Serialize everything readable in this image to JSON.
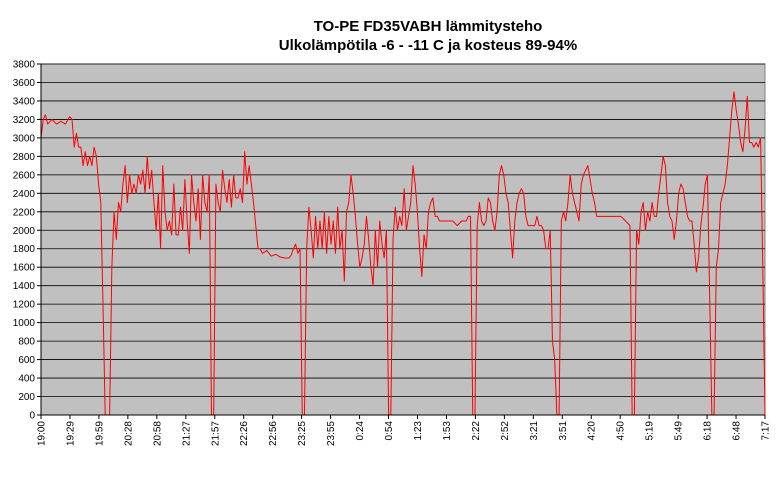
{
  "chart_data": {
    "type": "line",
    "title": "TO-PE FD35VABH lämmitysteho",
    "subtitle": "Ulkolämpötila  -6 - -11 C ja kosteus 89-94%",
    "xlabel": "",
    "ylabel": "",
    "ylim": [
      0,
      3800
    ],
    "ytick_step": 200,
    "grid": true,
    "legend": "none",
    "plot_background": "#c0c0c0",
    "line_color": "#ff0000",
    "x_ticks": [
      "19:00",
      "19:29",
      "19:59",
      "20:28",
      "20:58",
      "21:27",
      "21:57",
      "22:26",
      "22:56",
      "23:25",
      "23:55",
      "0:24",
      "0:54",
      "1:23",
      "1:53",
      "2:22",
      "2:52",
      "3:21",
      "3:51",
      "4:20",
      "4:50",
      "5:19",
      "5:49",
      "6:18",
      "6:48",
      "7:17"
    ],
    "series": [
      {
        "values": [
          [
            0,
            3000
          ],
          [
            1,
            3200
          ],
          [
            2,
            3250
          ],
          [
            3,
            3150
          ],
          [
            5,
            3200
          ],
          [
            7,
            3150
          ],
          [
            9,
            3180
          ],
          [
            11,
            3150
          ],
          [
            13,
            3230
          ],
          [
            14,
            3200
          ],
          [
            15,
            2900
          ],
          [
            16,
            3050
          ],
          [
            17,
            2900
          ],
          [
            18,
            2900
          ],
          [
            19,
            2700
          ],
          [
            20,
            2850
          ],
          [
            21,
            2700
          ],
          [
            22,
            2800
          ],
          [
            23,
            2700
          ],
          [
            24,
            2900
          ],
          [
            25,
            2800
          ],
          [
            26,
            2500
          ],
          [
            27,
            2300
          ],
          [
            28,
            1200
          ],
          [
            29,
            0
          ],
          [
            30,
            0
          ],
          [
            31,
            0
          ],
          [
            32,
            1600
          ],
          [
            33,
            2200
          ],
          [
            34,
            1900
          ],
          [
            35,
            2300
          ],
          [
            36,
            2200
          ],
          [
            37,
            2500
          ],
          [
            38,
            2700
          ],
          [
            39,
            2300
          ],
          [
            40,
            2600
          ],
          [
            41,
            2400
          ],
          [
            42,
            2500
          ],
          [
            43,
            2400
          ],
          [
            44,
            2600
          ],
          [
            45,
            2500
          ],
          [
            46,
            2650
          ],
          [
            47,
            2400
          ],
          [
            48,
            2800
          ],
          [
            49,
            2450
          ],
          [
            50,
            2650
          ],
          [
            51,
            2300
          ],
          [
            52,
            2000
          ],
          [
            53,
            2400
          ],
          [
            54,
            1800
          ],
          [
            55,
            2700
          ],
          [
            56,
            2200
          ],
          [
            57,
            2000
          ],
          [
            58,
            2100
          ],
          [
            59,
            1950
          ],
          [
            60,
            2500
          ],
          [
            61,
            1950
          ],
          [
            62,
            1950
          ],
          [
            63,
            2250
          ],
          [
            64,
            2000
          ],
          [
            65,
            2550
          ],
          [
            66,
            2100
          ],
          [
            67,
            1750
          ],
          [
            68,
            2600
          ],
          [
            69,
            2300
          ],
          [
            70,
            2100
          ],
          [
            71,
            2450
          ],
          [
            72,
            1900
          ],
          [
            73,
            2600
          ],
          [
            74,
            2300
          ],
          [
            75,
            2200
          ],
          [
            76,
            2600
          ],
          [
            77,
            0
          ],
          [
            78,
            0
          ],
          [
            79,
            2500
          ],
          [
            80,
            2300
          ],
          [
            81,
            2200
          ],
          [
            82,
            2650
          ],
          [
            83,
            2450
          ],
          [
            84,
            2300
          ],
          [
            85,
            2550
          ],
          [
            86,
            2250
          ],
          [
            87,
            2600
          ],
          [
            88,
            2350
          ],
          [
            89,
            2350
          ],
          [
            90,
            2450
          ],
          [
            91,
            2300
          ],
          [
            92,
            2850
          ],
          [
            93,
            2500
          ],
          [
            94,
            2700
          ],
          [
            95,
            2500
          ],
          [
            96,
            2300
          ],
          [
            97,
            2050
          ],
          [
            98,
            1800
          ],
          [
            99,
            1800
          ],
          [
            100,
            1750
          ],
          [
            102,
            1780
          ],
          [
            104,
            1720
          ],
          [
            106,
            1740
          ],
          [
            108,
            1710
          ],
          [
            110,
            1700
          ],
          [
            112,
            1700
          ],
          [
            113,
            1730
          ],
          [
            114,
            1800
          ],
          [
            115,
            1850
          ],
          [
            116,
            1750
          ],
          [
            117,
            1800
          ],
          [
            118,
            0
          ],
          [
            119,
            0
          ],
          [
            120,
            1800
          ],
          [
            121,
            2250
          ],
          [
            122,
            2000
          ],
          [
            123,
            1700
          ],
          [
            124,
            2150
          ],
          [
            125,
            1800
          ],
          [
            126,
            2100
          ],
          [
            127,
            1800
          ],
          [
            128,
            2200
          ],
          [
            129,
            1750
          ],
          [
            130,
            2150
          ],
          [
            131,
            1850
          ],
          [
            132,
            2100
          ],
          [
            133,
            1750
          ],
          [
            134,
            2250
          ],
          [
            135,
            1800
          ],
          [
            136,
            2000
          ],
          [
            137,
            1450
          ],
          [
            138,
            2200
          ],
          [
            139,
            2300
          ],
          [
            140,
            2600
          ],
          [
            141,
            2400
          ],
          [
            142,
            2150
          ],
          [
            143,
            1850
          ],
          [
            144,
            1600
          ],
          [
            145,
            1700
          ],
          [
            146,
            1850
          ],
          [
            147,
            2150
          ],
          [
            148,
            1900
          ],
          [
            149,
            1600
          ],
          [
            150,
            1400
          ],
          [
            151,
            2000
          ],
          [
            152,
            1600
          ],
          [
            153,
            2100
          ],
          [
            154,
            1850
          ],
          [
            155,
            1700
          ],
          [
            156,
            2000
          ],
          [
            157,
            0
          ],
          [
            158,
            0
          ],
          [
            159,
            1900
          ],
          [
            160,
            2250
          ],
          [
            161,
            2000
          ],
          [
            162,
            2150
          ],
          [
            163,
            2050
          ],
          [
            164,
            2450
          ],
          [
            165,
            2000
          ],
          [
            166,
            2150
          ],
          [
            167,
            2300
          ],
          [
            168,
            2700
          ],
          [
            169,
            2500
          ],
          [
            170,
            2200
          ],
          [
            171,
            1800
          ],
          [
            172,
            1500
          ],
          [
            173,
            1950
          ],
          [
            174,
            1800
          ],
          [
            175,
            2200
          ],
          [
            176,
            2300
          ],
          [
            177,
            2350
          ],
          [
            178,
            2150
          ],
          [
            179,
            2150
          ],
          [
            180,
            2100
          ],
          [
            182,
            2100
          ],
          [
            184,
            2100
          ],
          [
            186,
            2100
          ],
          [
            188,
            2050
          ],
          [
            190,
            2100
          ],
          [
            192,
            2100
          ],
          [
            193,
            2150
          ],
          [
            194,
            2150
          ],
          [
            195,
            0
          ],
          [
            196,
            0
          ],
          [
            197,
            2050
          ],
          [
            198,
            2300
          ],
          [
            199,
            2100
          ],
          [
            200,
            2050
          ],
          [
            201,
            2100
          ],
          [
            202,
            2350
          ],
          [
            203,
            2300
          ],
          [
            204,
            2100
          ],
          [
            205,
            2000
          ],
          [
            206,
            2200
          ],
          [
            207,
            2600
          ],
          [
            208,
            2700
          ],
          [
            209,
            2600
          ],
          [
            210,
            2400
          ],
          [
            211,
            2300
          ],
          [
            212,
            2000
          ],
          [
            213,
            1700
          ],
          [
            214,
            2100
          ],
          [
            215,
            2300
          ],
          [
            216,
            2400
          ],
          [
            217,
            2450
          ],
          [
            218,
            2400
          ],
          [
            219,
            2150
          ],
          [
            220,
            2050
          ],
          [
            221,
            2050
          ],
          [
            222,
            2050
          ],
          [
            223,
            2050
          ],
          [
            224,
            2150
          ],
          [
            225,
            2050
          ],
          [
            226,
            2050
          ],
          [
            227,
            2000
          ],
          [
            228,
            1800
          ],
          [
            229,
            1800
          ],
          [
            230,
            2000
          ],
          [
            231,
            800
          ],
          [
            232,
            600
          ],
          [
            233,
            0
          ],
          [
            234,
            0
          ],
          [
            235,
            2100
          ],
          [
            236,
            2200
          ],
          [
            237,
            2100
          ],
          [
            238,
            2300
          ],
          [
            239,
            2600
          ],
          [
            240,
            2400
          ],
          [
            241,
            2300
          ],
          [
            242,
            2200
          ],
          [
            243,
            2100
          ],
          [
            244,
            2500
          ],
          [
            245,
            2600
          ],
          [
            246,
            2650
          ],
          [
            247,
            2700
          ],
          [
            248,
            2550
          ],
          [
            249,
            2400
          ],
          [
            250,
            2300
          ],
          [
            251,
            2150
          ],
          [
            252,
            2150
          ],
          [
            254,
            2150
          ],
          [
            256,
            2150
          ],
          [
            258,
            2150
          ],
          [
            260,
            2150
          ],
          [
            262,
            2150
          ],
          [
            264,
            2100
          ],
          [
            266,
            2050
          ],
          [
            267,
            0
          ],
          [
            268,
            0
          ],
          [
            269,
            2000
          ],
          [
            270,
            1850
          ],
          [
            271,
            2200
          ],
          [
            272,
            2300
          ],
          [
            273,
            2000
          ],
          [
            274,
            2200
          ],
          [
            275,
            2100
          ],
          [
            276,
            2300
          ],
          [
            277,
            2150
          ],
          [
            278,
            2150
          ],
          [
            279,
            2400
          ],
          [
            280,
            2600
          ],
          [
            281,
            2800
          ],
          [
            282,
            2700
          ],
          [
            283,
            2300
          ],
          [
            284,
            2150
          ],
          [
            285,
            2100
          ],
          [
            286,
            1900
          ],
          [
            287,
            2100
          ],
          [
            288,
            2400
          ],
          [
            289,
            2500
          ],
          [
            290,
            2450
          ],
          [
            291,
            2300
          ],
          [
            292,
            2150
          ],
          [
            293,
            2100
          ],
          [
            294,
            2100
          ],
          [
            295,
            1850
          ],
          [
            296,
            1550
          ],
          [
            297,
            1700
          ],
          [
            298,
            2050
          ],
          [
            299,
            2250
          ],
          [
            300,
            2500
          ],
          [
            301,
            2600
          ],
          [
            302,
            1300
          ],
          [
            303,
            0
          ],
          [
            304,
            0
          ],
          [
            305,
            1600
          ],
          [
            306,
            1800
          ],
          [
            307,
            2300
          ],
          [
            308,
            2400
          ],
          [
            309,
            2500
          ],
          [
            310,
            2700
          ],
          [
            311,
            3000
          ],
          [
            312,
            3300
          ],
          [
            313,
            3500
          ],
          [
            314,
            3300
          ],
          [
            315,
            3150
          ],
          [
            316,
            2950
          ],
          [
            317,
            2850
          ],
          [
            318,
            3100
          ],
          [
            319,
            3450
          ],
          [
            320,
            2950
          ],
          [
            321,
            2950
          ],
          [
            322,
            2900
          ],
          [
            323,
            2950
          ],
          [
            324,
            2900
          ],
          [
            325,
            3000
          ],
          [
            326,
            1600
          ],
          [
            327,
            0
          ]
        ]
      }
    ]
  }
}
